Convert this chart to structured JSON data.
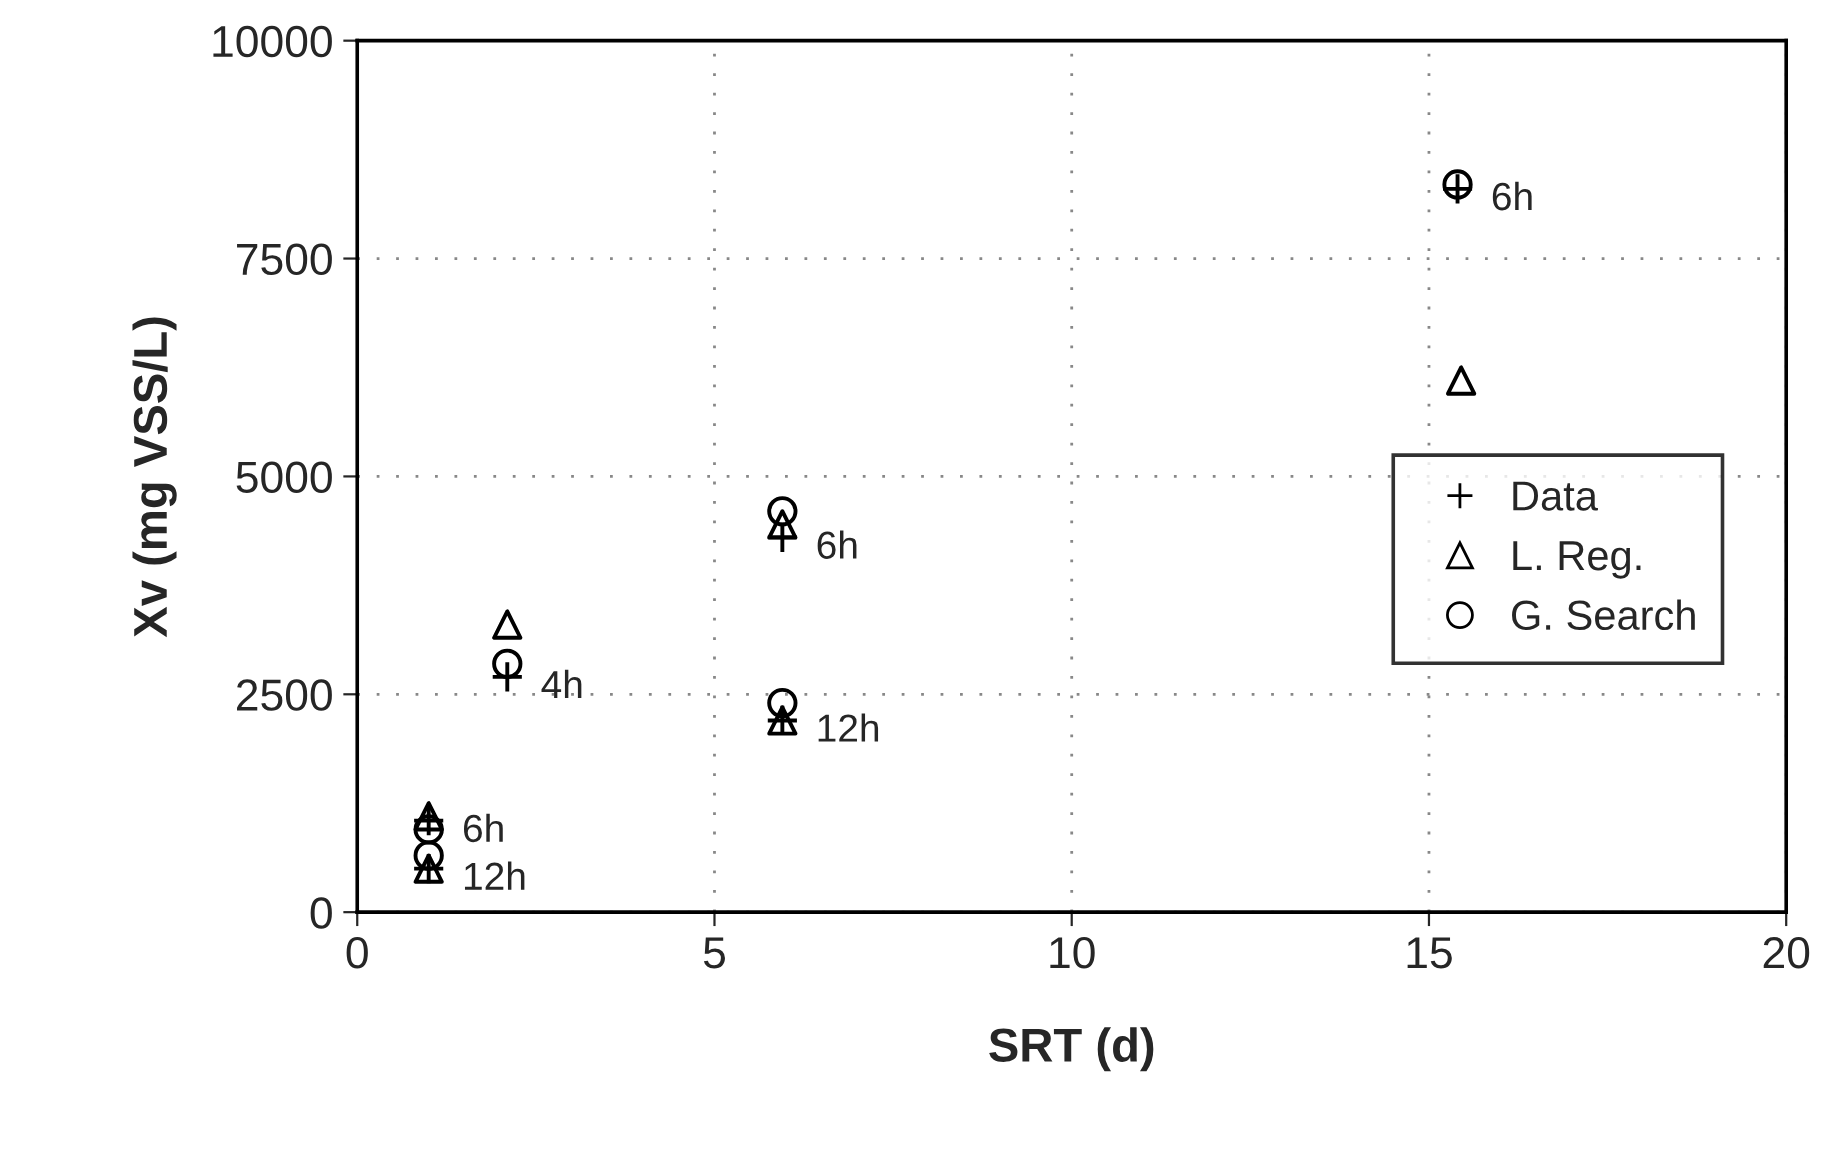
{
  "chart_data": {
    "type": "scatter",
    "xlabel": "SRT (d)",
    "ylabel": "Xv (mg VSS/L)",
    "xlim": [
      0,
      20
    ],
    "xticks": [
      0,
      5,
      10,
      15,
      20
    ],
    "ylim": [
      0,
      10000
    ],
    "yticks": [
      0,
      2500,
      5000,
      7500,
      10000
    ],
    "grid": true,
    "legend": "center right",
    "series": [
      {
        "name": "Data",
        "color": "#000000",
        "marker": "cross",
        "x": [
          1,
          1,
          2.1,
          5.95,
          5.95,
          15.4
        ],
        "values": [
          1050,
          500,
          2700,
          4300,
          2200,
          8300
        ]
      },
      {
        "name": "L. Reg.",
        "color": "#000000",
        "marker": "triangle",
        "x": [
          1,
          1,
          2.1,
          5.95,
          5.95,
          15.45
        ],
        "values": [
          1100,
          500,
          3300,
          4450,
          2200,
          6100
        ]
      },
      {
        "name": "G. Search",
        "color": "#000000",
        "marker": "circle",
        "x": [
          1,
          1,
          2.1,
          5.95,
          5.95,
          15.4
        ],
        "values": [
          950,
          650,
          2850,
          4600,
          2400,
          8350
        ]
      }
    ],
    "annotations": [
      {
        "text": "6h",
        "x": 1,
        "y": 1050
      },
      {
        "text": "12h",
        "x": 1,
        "y": 500
      },
      {
        "text": "4h",
        "x": 2.1,
        "y": 2700
      },
      {
        "text": "6h",
        "x": 5.95,
        "y": 4300
      },
      {
        "text": "12h",
        "x": 5.95,
        "y": 2200
      },
      {
        "text": "6h",
        "x": 15.4,
        "y": 8300
      }
    ]
  }
}
